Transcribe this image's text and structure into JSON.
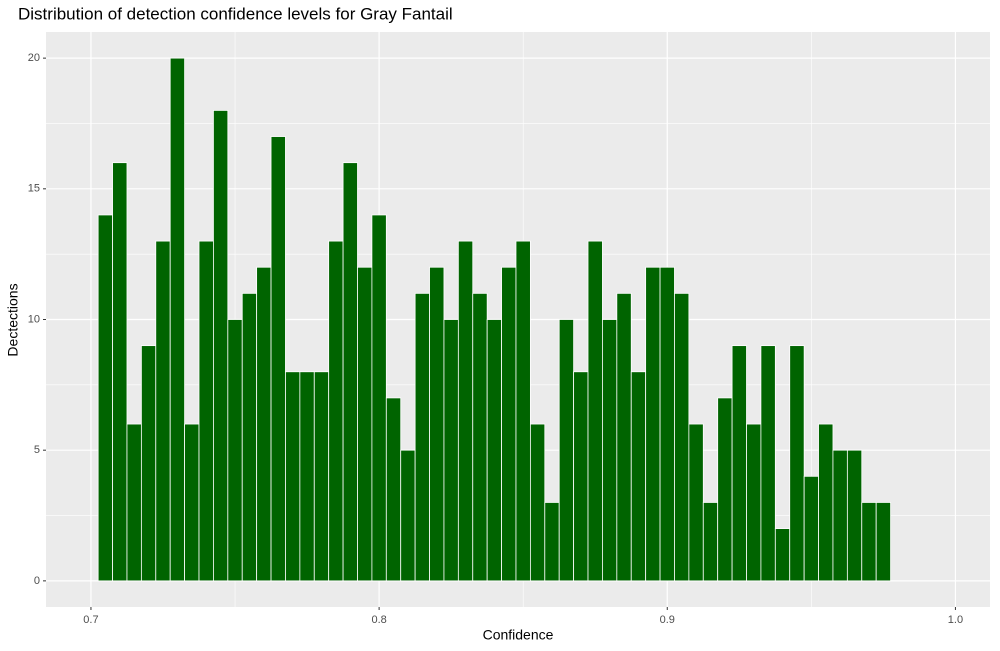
{
  "chart_data": {
    "type": "histogram",
    "title": "Distribution of detection confidence levels for Gray Fantail",
    "x_label": "Confidence",
    "y_label": "Dectections",
    "bins": [
      0.7025,
      0.7075,
      0.7125,
      0.7175,
      0.7225,
      0.7275,
      0.7325,
      0.7375,
      0.7425,
      0.7475,
      0.7525,
      0.7575,
      0.7625,
      0.7675,
      0.7725,
      0.7775,
      0.7825,
      0.7875,
      0.7925,
      0.7975,
      0.8025,
      0.8075,
      0.8125,
      0.8175,
      0.8225,
      0.8275,
      0.8325,
      0.8375,
      0.8425,
      0.8475,
      0.8525,
      0.8575,
      0.8625,
      0.8675,
      0.8725,
      0.8775,
      0.8825,
      0.8875,
      0.8925,
      0.8975,
      0.9025,
      0.9075,
      0.9125,
      0.9175,
      0.9225,
      0.9275,
      0.9325,
      0.9375,
      0.9425,
      0.9475,
      0.9525,
      0.9575,
      0.9625,
      0.9675,
      0.9725,
      0.9775
    ],
    "values": [
      14,
      16,
      6,
      9,
      13,
      20,
      6,
      13,
      18,
      10,
      11,
      12,
      17,
      8,
      8,
      8,
      13,
      16,
      12,
      14,
      7,
      5,
      11,
      12,
      10,
      13,
      11,
      10,
      12,
      13,
      6,
      3,
      10,
      8,
      13,
      10,
      11,
      8,
      12,
      12,
      11,
      6,
      3,
      7,
      9,
      6,
      9,
      2,
      9,
      4,
      6,
      5,
      5,
      3,
      3
    ],
    "color": "#006400",
    "xlim": [
      0.6844,
      1.012
    ],
    "xticks": [
      0.7,
      0.8,
      0.9,
      {
        "value": 1,
        "label": "1.0"
      }
    ],
    "x_minor_ticks": [
      0.75,
      0.85,
      0.95
    ],
    "ylim": [
      -1,
      21
    ],
    "yticks": [
      0,
      5,
      10,
      15,
      20
    ],
    "y_minor_ticks": [
      2.5,
      7.5,
      12.5,
      17.5
    ],
    "grid": true
  }
}
